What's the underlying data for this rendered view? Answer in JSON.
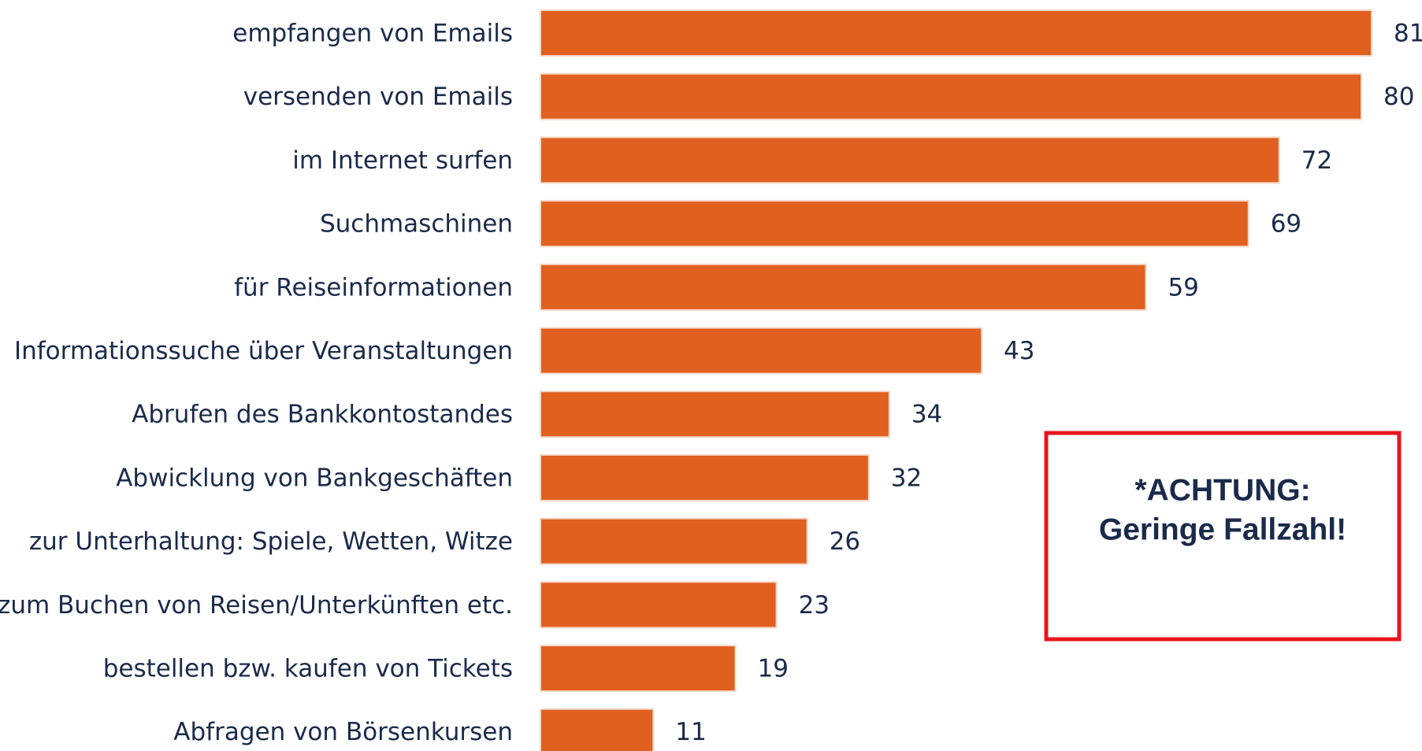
{
  "chart_data": {
    "type": "bar",
    "orientation": "horizontal",
    "categories": [
      "empfangen von Emails",
      "versenden von Emails",
      "im Internet surfen",
      "Suchmaschinen",
      "für Reiseinformationen",
      "Informationssuche über Veranstaltungen",
      "Abrufen des Bankkontostandes",
      "Abwicklung von Bankgeschäften",
      "zur Unterhaltung: Spiele, Wetten, Witze",
      "zum Buchen von Reisen/Unterkünften etc.",
      "bestellen bzw. kaufen von Tickets",
      "Abfragen von Börsenkursen"
    ],
    "values": [
      81,
      80,
      72,
      69,
      59,
      43,
      34,
      32,
      26,
      23,
      19,
      11
    ],
    "color": "#e06020",
    "annotation": [
      "*ACHTUNG:",
      "Geringe Fallzahl!"
    ],
    "annotation_color": "#e8141c"
  }
}
